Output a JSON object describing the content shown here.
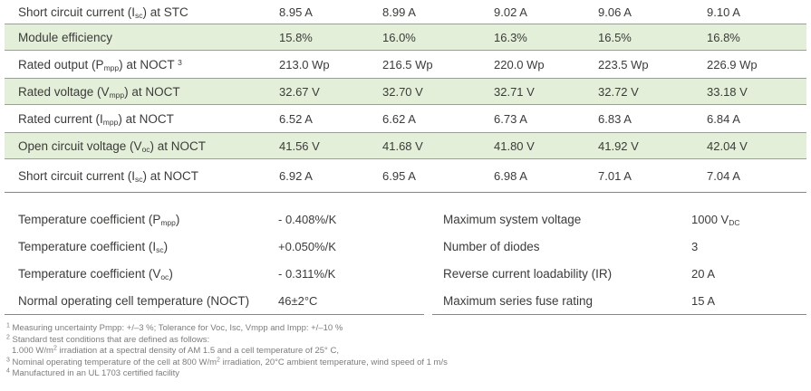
{
  "colors": {
    "row_shade_green": "#e4efda",
    "shade_border": "#99a196",
    "rule_gray": "#868686",
    "text": "#3b3b3a",
    "footnote_text": "#7c7c7b",
    "background": "#ffffff"
  },
  "main_table": {
    "rows": [
      {
        "label": "Short circuit current (I~sc~) at STC",
        "values": [
          "8.95 A",
          "8.99 A",
          "9.02 A",
          "9.06 A",
          "9.10 A"
        ],
        "shaded": false
      },
      {
        "label": "Module efficiency",
        "values": [
          "15.8%",
          "16.0%",
          "16.3%",
          "16.5%",
          "16.8%"
        ],
        "shaded": true
      },
      {
        "label": "Rated output (P~mpp~) at NOCT ^3^",
        "values": [
          "213.0 Wp",
          "216.5 Wp",
          "220.0 Wp",
          "223.5 Wp",
          "226.9 Wp"
        ],
        "shaded": false
      },
      {
        "label": "Rated voltage (V~mpp~) at NOCT",
        "values": [
          "32.67 V",
          "32.70 V",
          "32.71 V",
          "32.72 V",
          "33.18 V"
        ],
        "shaded": true
      },
      {
        "label": "Rated current (I~mpp~) at NOCT",
        "values": [
          "6.52 A",
          "6.62 A",
          "6.73 A",
          "6.83 A",
          "6.84 A"
        ],
        "shaded": false
      },
      {
        "label": "Open circuit voltage (V~oc~) at NOCT",
        "values": [
          "41.56 V",
          "41.68 V",
          "41.80 V",
          "41.92 V",
          "42.04 V"
        ],
        "shaded": true
      },
      {
        "label": "Short circuit current (I~sc~) at NOCT",
        "values": [
          "6.92 A",
          "6.95 A",
          "6.98 A",
          "7.01 A",
          "7.04 A"
        ],
        "shaded": false
      }
    ]
  },
  "temp_coeff_table": {
    "rows": [
      {
        "label": "Temperature coefficient (P~mpp~)",
        "value": "- 0.408%/K",
        "shaded": true
      },
      {
        "label": "Temperature coefficient (I~sc~)",
        "value": "+0.050%/K",
        "shaded": false
      },
      {
        "label": "Temperature coefficient (V~oc~)",
        "value": "- 0.311%/K",
        "shaded": true
      },
      {
        "label": "Normal operating cell temperature (NOCT)",
        "value": "46±2°C",
        "shaded": false
      }
    ]
  },
  "system_spec_table": {
    "rows": [
      {
        "label": "Maximum system voltage",
        "value": "1000 V~DC~",
        "shaded": true
      },
      {
        "label": "Number of diodes",
        "value": "3",
        "shaded": false
      },
      {
        "label": "Reverse current loadability (IR)",
        "value": "20 A",
        "shaded": true
      },
      {
        "label": "Maximum series fuse rating",
        "value": "15 A",
        "shaded": false
      }
    ]
  },
  "footnotes": [
    {
      "text": "^1^ Measuring uncertainty Pmpp: +/–3 %; Tolerance for Voc, Isc, Vmpp and Impp: +/–10 %",
      "indent": false
    },
    {
      "text": "^2^ Standard test conditions that are defined as follows:",
      "indent": false
    },
    {
      "text": "1.000 W/m^2^ irradiation at a spectral density of AM 1.5 and a cell temperature of 25° C,",
      "indent": true
    },
    {
      "text": "^3^ Nominal operating temperature of the cell at 800 W/m^2^ irradiation, 20°C ambient temperature, wind speed of 1 m/s",
      "indent": false
    },
    {
      "text": "^4^ Manufactured in an UL 1703 certified facility",
      "indent": false
    }
  ]
}
